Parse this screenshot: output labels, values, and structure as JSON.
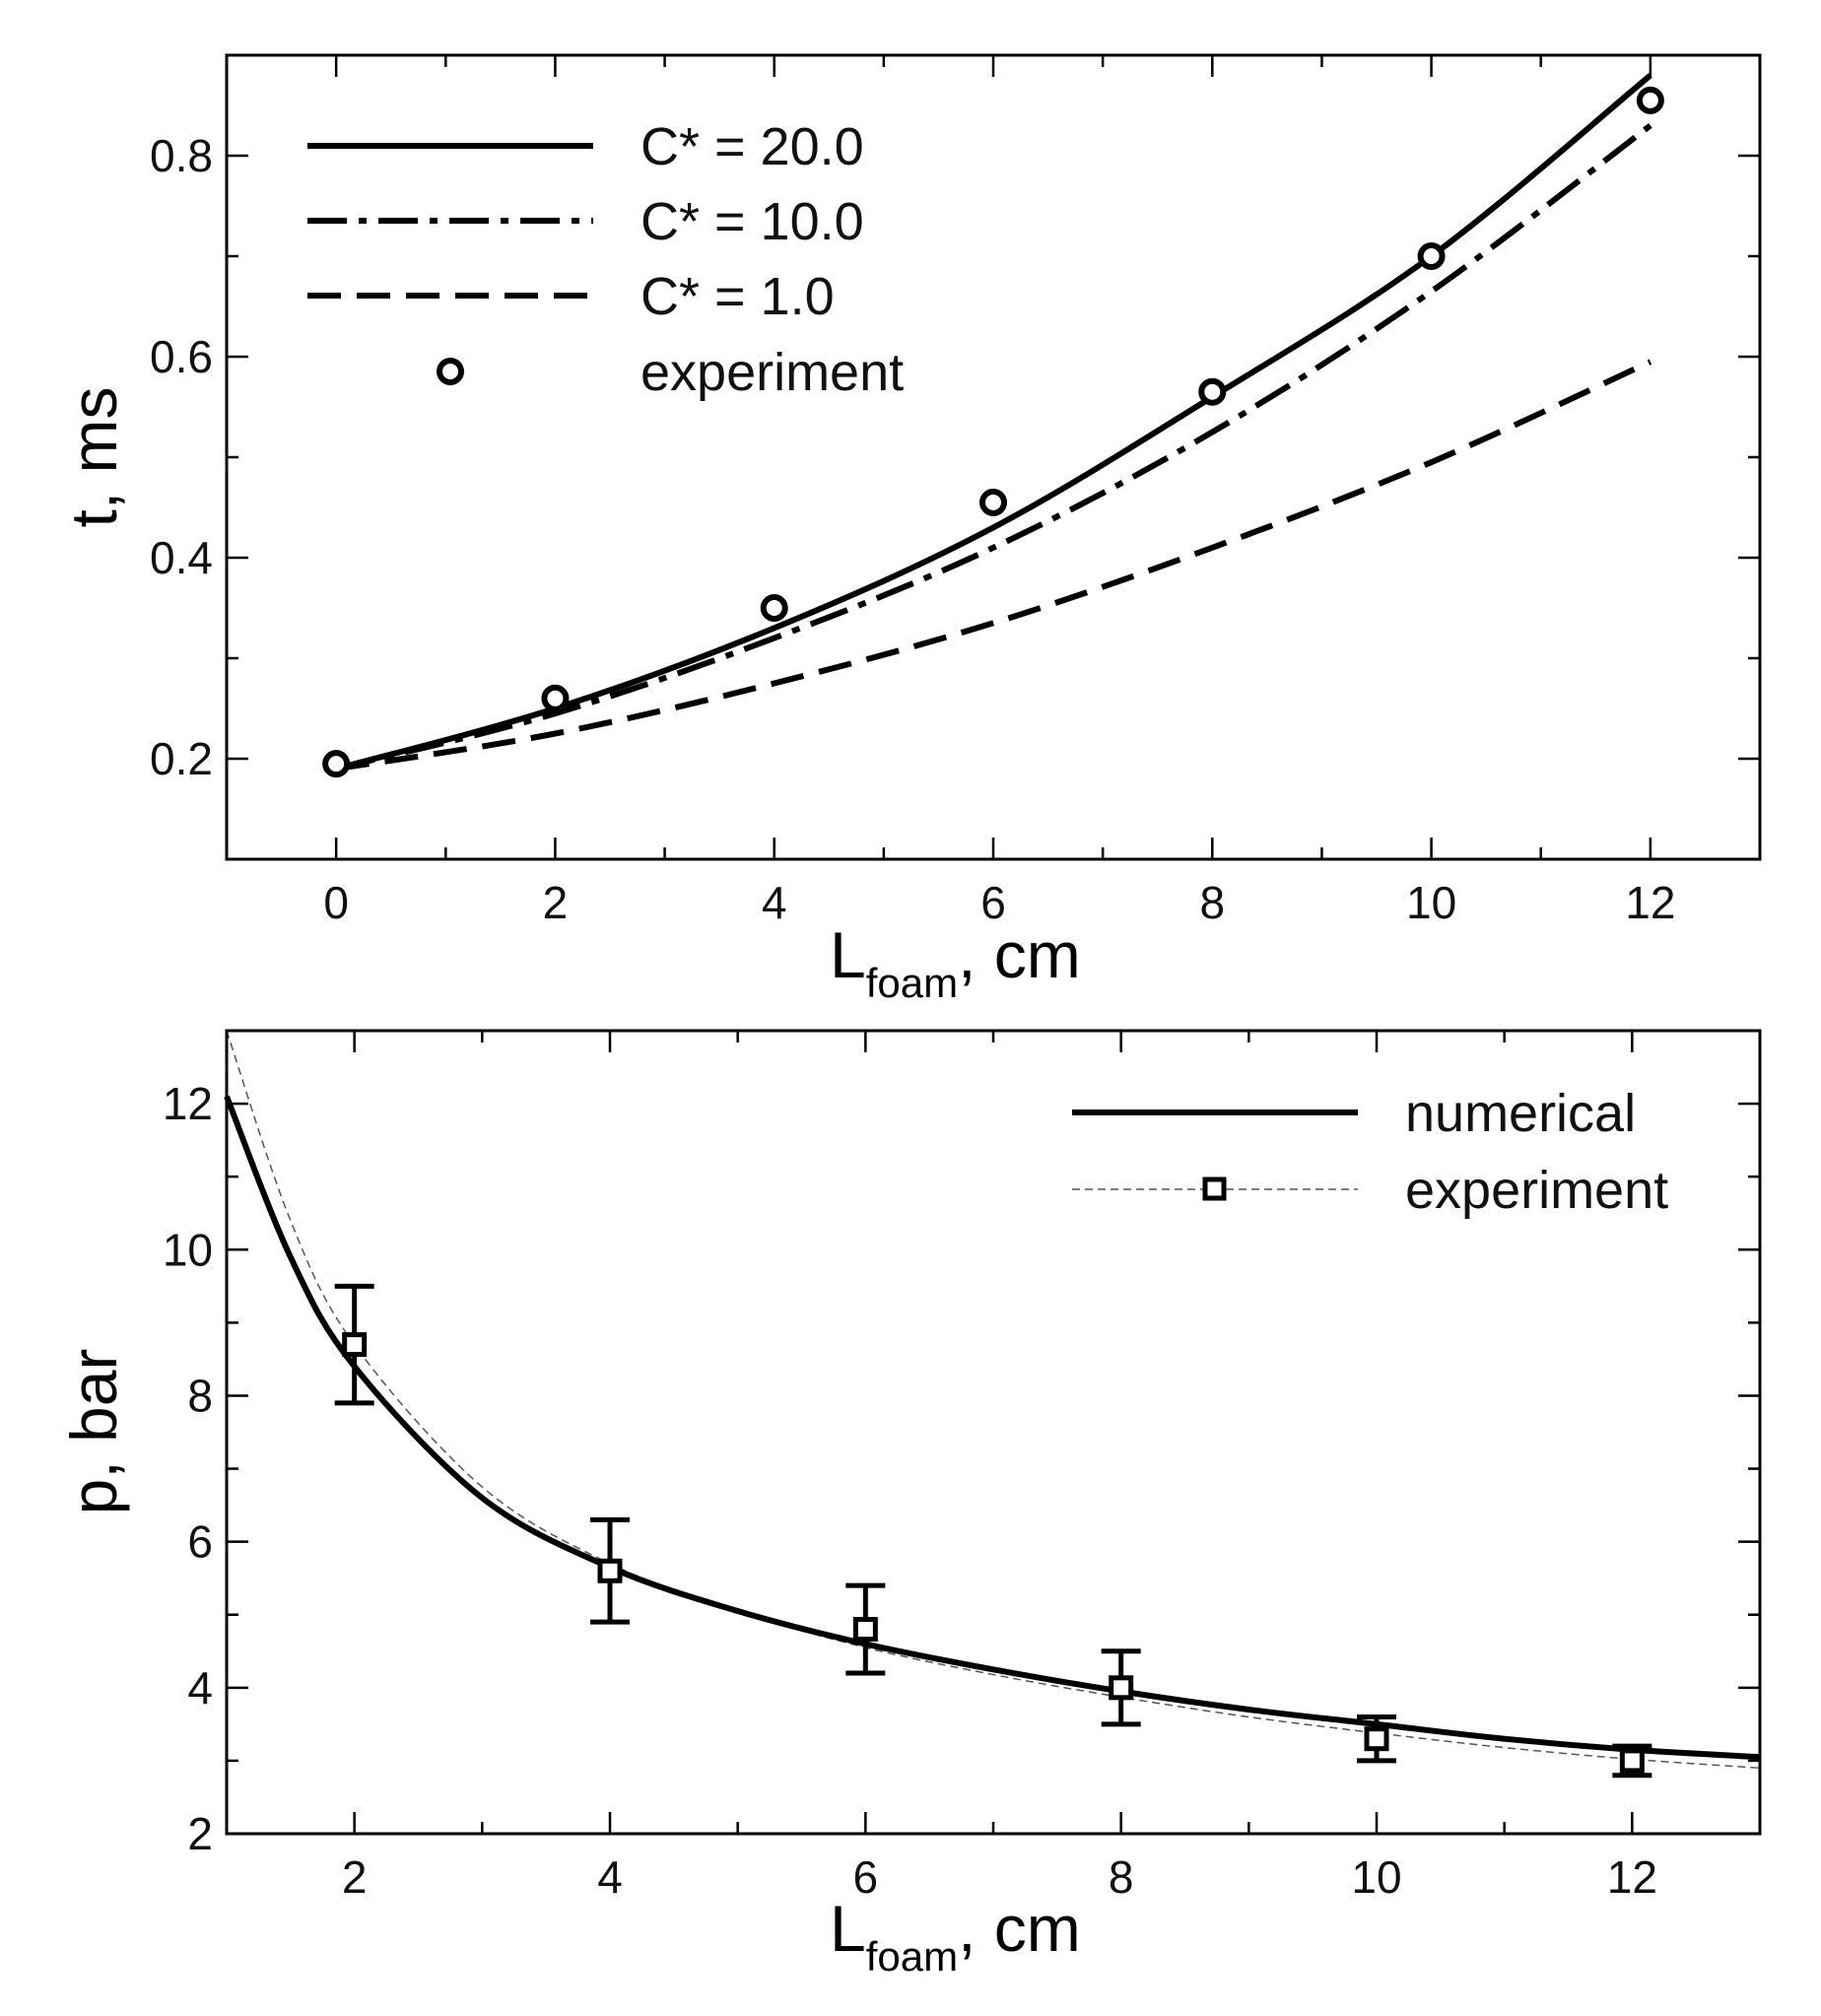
{
  "chart_data": [
    {
      "type": "line",
      "xlabel": "L",
      "xlabel_sub": "foam",
      "xlabel_suffix": ", cm",
      "ylabel": "t, ms",
      "xlim": [
        -1,
        13
      ],
      "ylim": [
        0.1,
        0.9
      ],
      "xticks": [
        0,
        2,
        4,
        6,
        8,
        10,
        12
      ],
      "yticks": [
        0.2,
        0.4,
        0.6,
        0.8
      ],
      "legend_position": "top-left",
      "series": [
        {
          "name": "C* = 20.0",
          "style": "solid",
          "x": [
            0,
            2,
            4,
            6,
            8,
            10,
            12
          ],
          "y": [
            0.19,
            0.25,
            0.33,
            0.43,
            0.56,
            0.7,
            0.88
          ]
        },
        {
          "name": "C* = 10.0",
          "style": "dashdot",
          "x": [
            0,
            2,
            4,
            6,
            8,
            10,
            12
          ],
          "y": [
            0.19,
            0.245,
            0.32,
            0.41,
            0.525,
            0.665,
            0.83
          ]
        },
        {
          "name": "C* = 1.0",
          "style": "dashed",
          "x": [
            0,
            2,
            4,
            6,
            8,
            10,
            12
          ],
          "y": [
            0.19,
            0.225,
            0.275,
            0.335,
            0.41,
            0.495,
            0.595
          ]
        },
        {
          "name": "experiment",
          "style": "circle",
          "x": [
            0,
            2,
            4,
            6,
            8,
            10,
            12
          ],
          "y": [
            0.195,
            0.26,
            0.35,
            0.455,
            0.565,
            0.7,
            0.855
          ]
        }
      ]
    },
    {
      "type": "line",
      "xlabel": "L",
      "xlabel_sub": "foam",
      "xlabel_suffix": ", cm",
      "ylabel": "p, bar",
      "xlim": [
        1,
        13
      ],
      "ylim": [
        2,
        13
      ],
      "xticks": [
        2,
        4,
        6,
        8,
        10,
        12
      ],
      "yticks": [
        2,
        4,
        6,
        8,
        10,
        12
      ],
      "legend_position": "top-right",
      "series": [
        {
          "name": "numerical",
          "style": "solid",
          "x": [
            1,
            1.5,
            2,
            3,
            4,
            5,
            6,
            7,
            8,
            9,
            10,
            11,
            12,
            13
          ],
          "y": [
            12.1,
            9.9,
            8.4,
            6.6,
            5.65,
            5.05,
            4.6,
            4.25,
            3.95,
            3.7,
            3.5,
            3.3,
            3.15,
            3.05
          ]
        },
        {
          "name": "experiment",
          "style": "square-dashed",
          "x": [
            2,
            4,
            6,
            8,
            10,
            12
          ],
          "y": [
            8.7,
            5.6,
            4.8,
            4.0,
            3.3,
            3.0
          ],
          "err": [
            0.8,
            0.7,
            0.6,
            0.5,
            0.3,
            0.2
          ],
          "fit_x": [
            1,
            1.5,
            2,
            3,
            4,
            5,
            6,
            7,
            8,
            9,
            10,
            11,
            12,
            13
          ],
          "fit_y": [
            13.0,
            10.4,
            8.7,
            6.75,
            5.7,
            5.05,
            4.55,
            4.18,
            3.87,
            3.6,
            3.38,
            3.18,
            3.02,
            2.9
          ]
        }
      ]
    }
  ]
}
